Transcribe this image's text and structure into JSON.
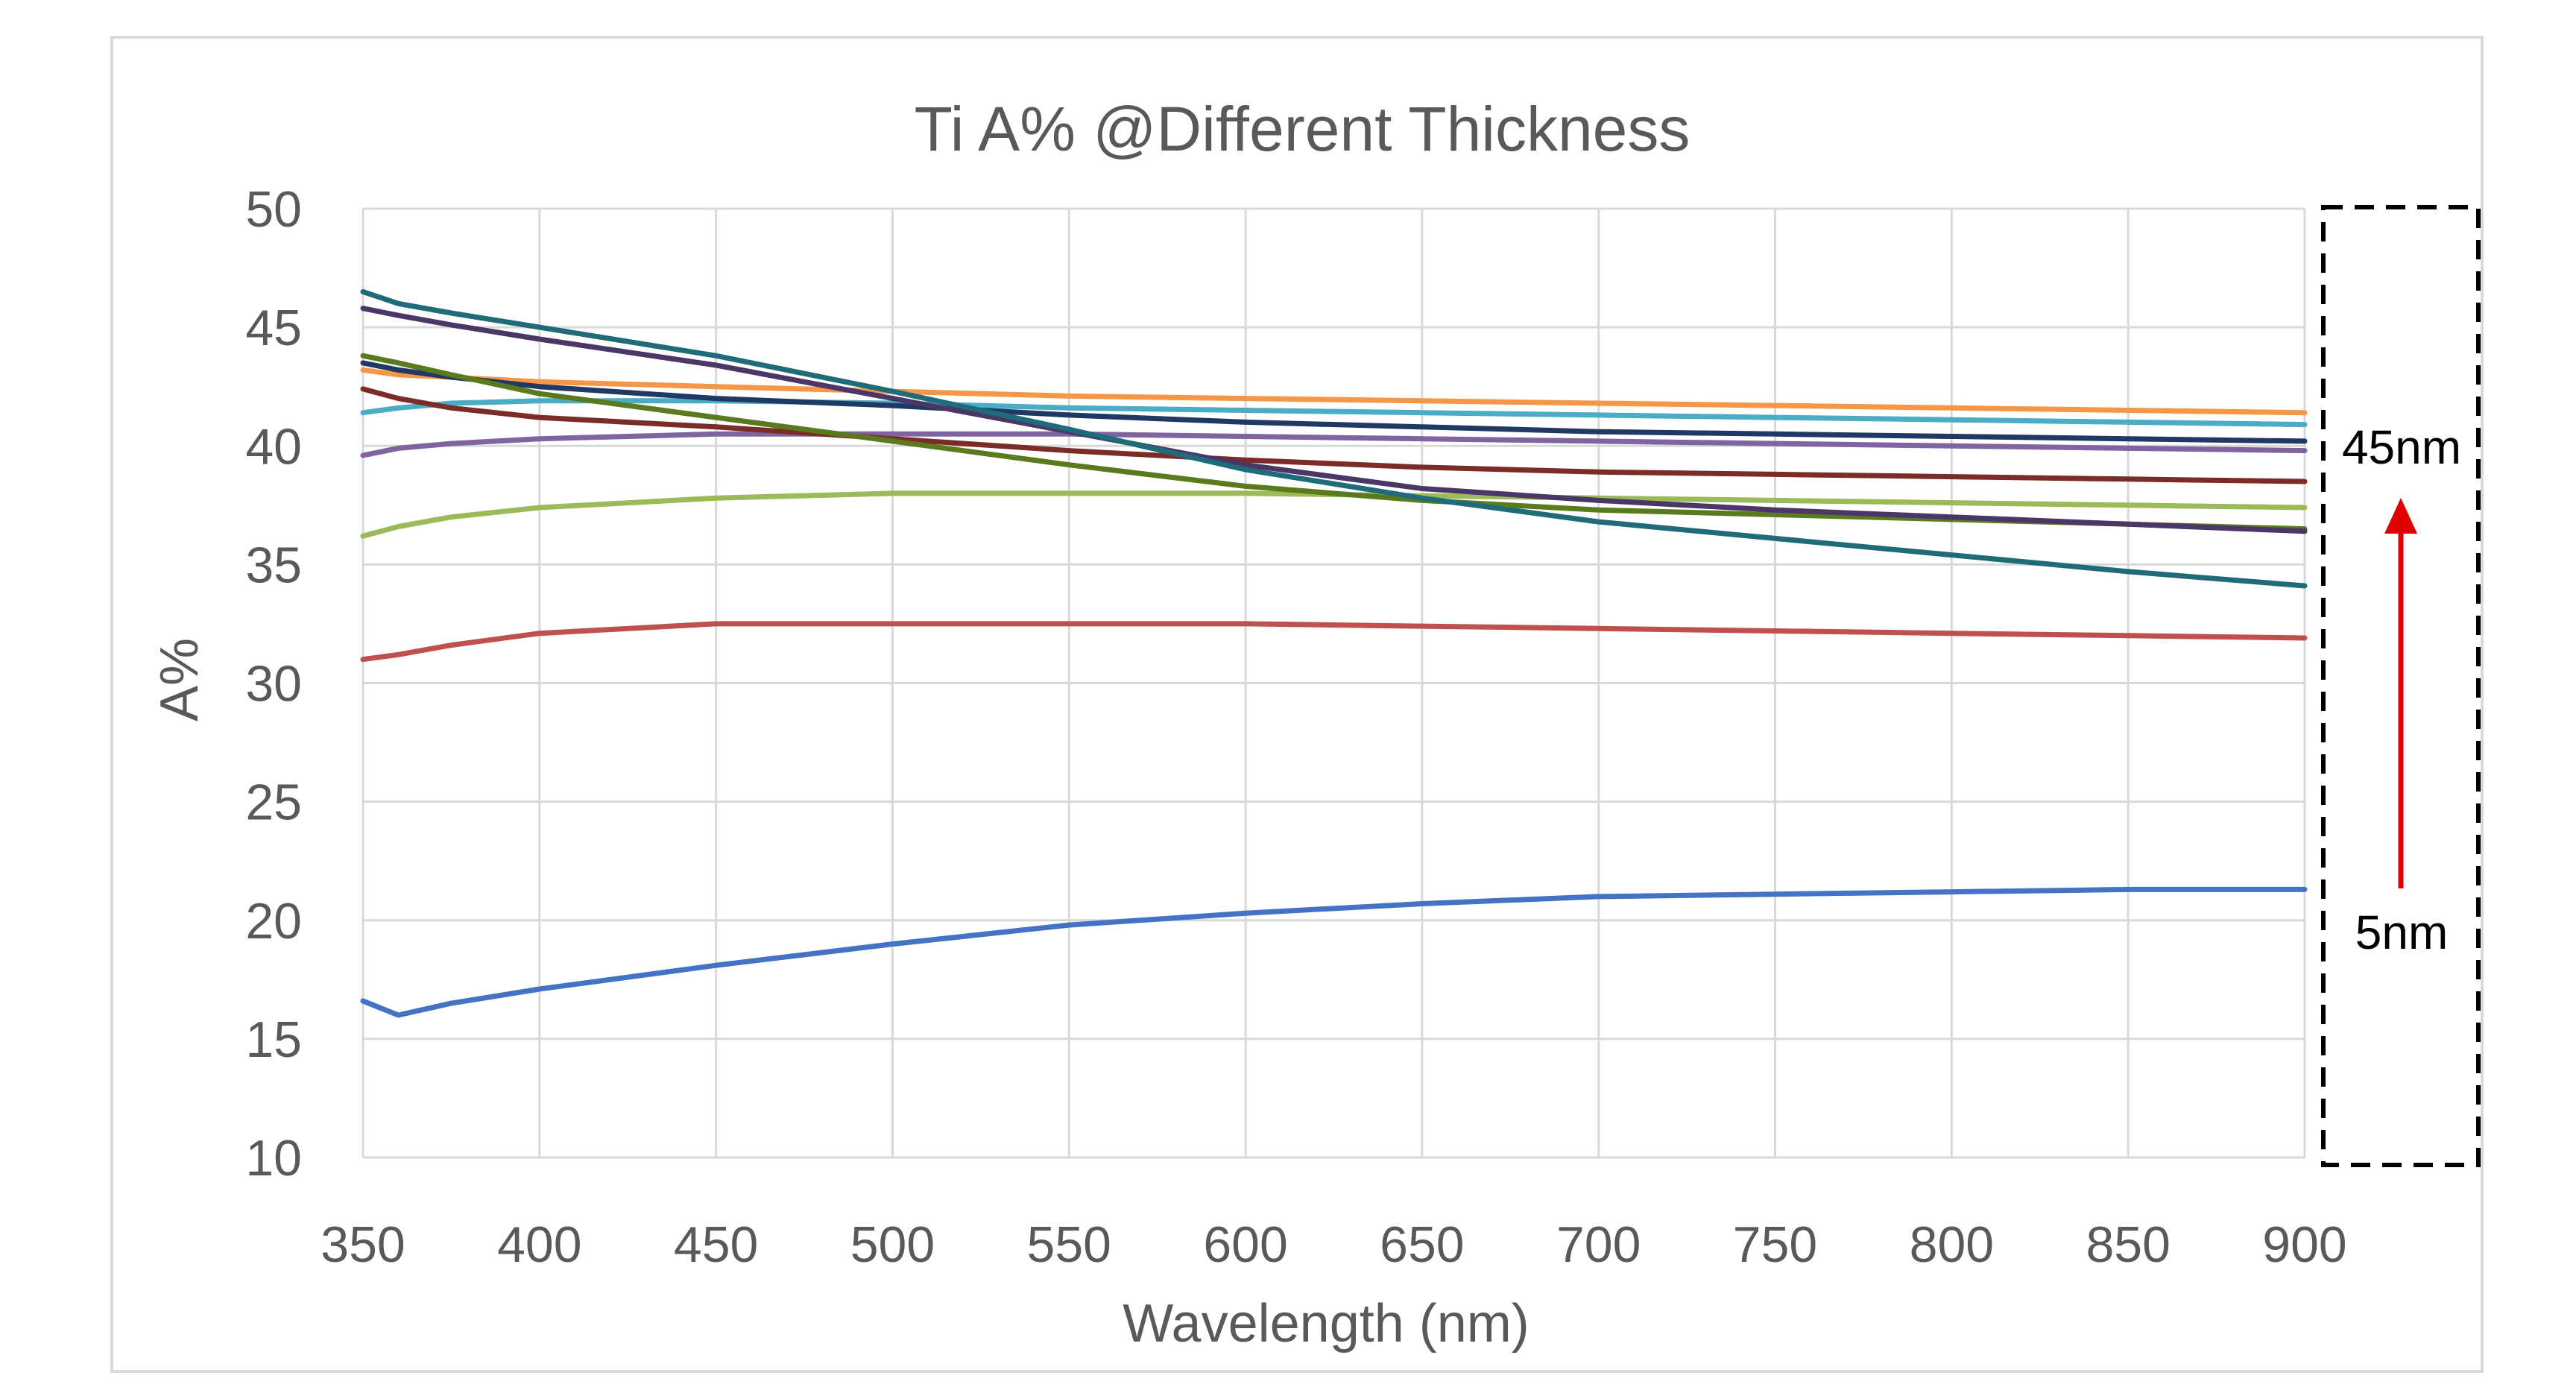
{
  "chart_data": {
    "type": "line",
    "title": "Ti A% @Different Thickness",
    "xlabel": "Wavelength (nm)",
    "ylabel": "A%",
    "xlim": [
      350,
      900
    ],
    "ylim": [
      10,
      50
    ],
    "xticks": [
      350,
      400,
      450,
      500,
      550,
      600,
      650,
      700,
      750,
      800,
      850,
      900
    ],
    "yticks": [
      10,
      15,
      20,
      25,
      30,
      35,
      40,
      45,
      50
    ],
    "grid": true,
    "legend": "none",
    "annotations": {
      "top_label": "45nm",
      "bottom_label": "5nm",
      "arrow_color": "#e00000",
      "arrow_direction": "up"
    },
    "x": [
      350,
      360,
      375,
      400,
      450,
      500,
      550,
      600,
      650,
      700,
      750,
      800,
      850,
      900
    ],
    "series": [
      {
        "color": "#4472c4",
        "values": [
          16.6,
          16.0,
          16.5,
          17.1,
          18.1,
          19.0,
          19.8,
          20.3,
          20.7,
          21.0,
          21.1,
          21.2,
          21.3,
          21.3
        ]
      },
      {
        "color": "#c0504d",
        "values": [
          31.0,
          31.2,
          31.6,
          32.1,
          32.5,
          32.5,
          32.5,
          32.5,
          32.4,
          32.3,
          32.2,
          32.1,
          32.0,
          31.9
        ]
      },
      {
        "color": "#9bbb59",
        "values": [
          36.2,
          36.6,
          37.0,
          37.4,
          37.8,
          38.0,
          38.0,
          38.0,
          37.9,
          37.8,
          37.7,
          37.6,
          37.5,
          37.4
        ]
      },
      {
        "color": "#8064a2",
        "values": [
          39.6,
          39.9,
          40.1,
          40.3,
          40.5,
          40.5,
          40.5,
          40.4,
          40.3,
          40.2,
          40.1,
          40.0,
          39.9,
          39.8
        ]
      },
      {
        "color": "#4bacc6",
        "values": [
          41.4,
          41.6,
          41.8,
          41.9,
          41.9,
          41.8,
          41.6,
          41.5,
          41.4,
          41.3,
          41.2,
          41.1,
          41.0,
          40.9
        ]
      },
      {
        "color": "#f79646",
        "values": [
          43.2,
          43.0,
          42.9,
          42.7,
          42.5,
          42.3,
          42.1,
          42.0,
          41.9,
          41.8,
          41.7,
          41.6,
          41.5,
          41.4
        ]
      },
      {
        "color": "#1f3864",
        "values": [
          43.5,
          43.2,
          42.9,
          42.5,
          42.0,
          41.7,
          41.3,
          41.0,
          40.8,
          40.6,
          40.5,
          40.4,
          40.3,
          40.2
        ]
      },
      {
        "color": "#7b2c26",
        "values": [
          42.4,
          42.0,
          41.6,
          41.2,
          40.8,
          40.3,
          39.8,
          39.4,
          39.1,
          38.9,
          38.8,
          38.7,
          38.6,
          38.5
        ]
      },
      {
        "color": "#5a7a1e",
        "values": [
          43.8,
          43.5,
          43.0,
          42.2,
          41.2,
          40.2,
          39.2,
          38.3,
          37.7,
          37.3,
          37.1,
          36.9,
          36.7,
          36.5
        ]
      },
      {
        "color": "#4a3767",
        "values": [
          45.8,
          45.5,
          45.1,
          44.5,
          43.4,
          42.0,
          40.6,
          39.2,
          38.2,
          37.7,
          37.3,
          37.0,
          36.7,
          36.4
        ]
      },
      {
        "color": "#1f6b7a",
        "values": [
          46.5,
          46.0,
          45.6,
          45.0,
          43.8,
          42.3,
          40.7,
          39.0,
          37.8,
          36.8,
          36.1,
          35.4,
          34.7,
          34.1
        ]
      }
    ]
  }
}
